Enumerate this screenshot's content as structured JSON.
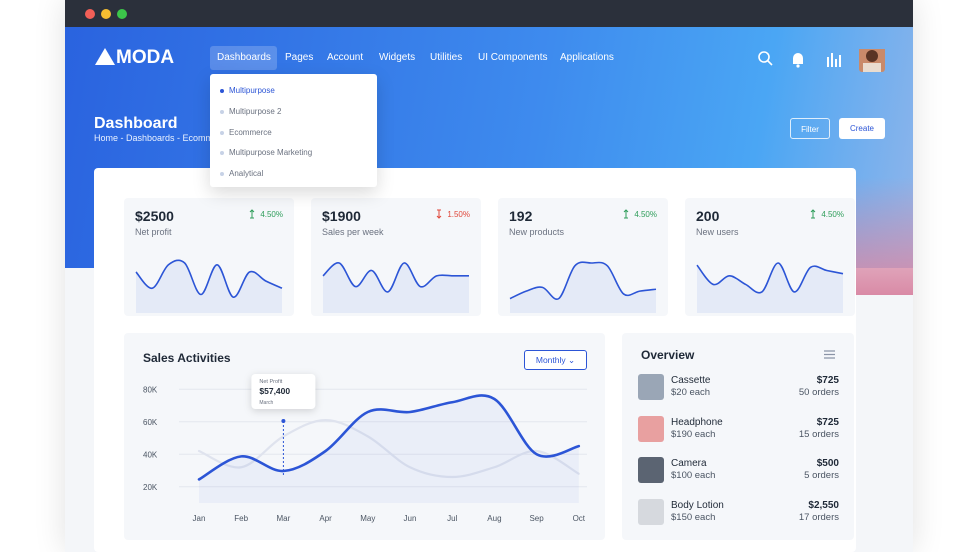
{
  "nav": {
    "brand": "MODA",
    "menu": [
      "Dashboards",
      "Pages",
      "Account",
      "Widgets",
      "Utilities",
      "UI Components",
      "Applications"
    ]
  },
  "dropdown": [
    "Multipurpose",
    "Multipurpose 2",
    "Ecommerce",
    "Multipurpose Marketing",
    "Analytical"
  ],
  "header": {
    "title": "Dashboard",
    "breadcrumb": "Home - Dashboards - Ecommerce",
    "buttons": [
      "Filter",
      "Create"
    ]
  },
  "stats": [
    {
      "value": "$2500",
      "label": "Net profit",
      "change": "4.50%",
      "trend": "up",
      "spark": [
        40,
        22,
        48,
        50,
        15,
        48,
        12,
        40,
        30,
        22
      ]
    },
    {
      "value": "$1900",
      "label": "Sales per week",
      "change": "1.50%",
      "trend": "down",
      "spark": [
        30,
        42,
        20,
        35,
        15,
        42,
        20,
        30,
        30,
        30
      ]
    },
    {
      "value": "192",
      "label": "New products",
      "change": "4.50%",
      "trend": "up",
      "spark": [
        10,
        18,
        22,
        10,
        45,
        48,
        45,
        15,
        18,
        20
      ]
    },
    {
      "value": "200",
      "label": "New users",
      "change": "4.50%",
      "trend": "up",
      "spark": [
        40,
        22,
        30,
        22,
        15,
        42,
        15,
        38,
        35,
        32
      ]
    }
  ],
  "sales": {
    "title": "Sales Activities",
    "button": "Monthly",
    "tooltip": {
      "label": "Net Profit",
      "value": "$57,400",
      "period": "March"
    },
    "chart_data": {
      "type": "line",
      "categories": [
        "Jan",
        "Feb",
        "Mar",
        "Apr",
        "May",
        "Jun",
        "Jul",
        "Aug",
        "Sep",
        "Oct"
      ],
      "ylim": [
        10000,
        90000
      ],
      "yticks": [
        {
          "value": 20000,
          "label": "20K"
        },
        {
          "value": 40000,
          "label": "40K"
        },
        {
          "value": 60000,
          "label": "60K"
        },
        {
          "value": 80000,
          "label": "80K"
        }
      ],
      "grid": true,
      "series": [
        {
          "color": "#dfe3ee",
          "values": [
            42000,
            32000,
            51000,
            61000,
            51000,
            32000,
            26000,
            32000,
            42000,
            28000
          ]
        },
        {
          "color": "#2c55d6",
          "values": [
            24500,
            38700,
            29700,
            42000,
            66000,
            66000,
            72000,
            74000,
            40000,
            45000
          ]
        }
      ]
    }
  },
  "overview": {
    "title": "Overview",
    "items": [
      {
        "name": "Cassette",
        "price": "$20 each",
        "total": "$725",
        "orders": "50 orders"
      },
      {
        "name": "Headphone",
        "price": "$190 each",
        "total": "$725",
        "orders": "15 orders"
      },
      {
        "name": "Camera",
        "price": "$100 each",
        "total": "$500",
        "orders": "5 orders"
      },
      {
        "name": "Body Lotion",
        "price": "$150 each",
        "total": "$2,550",
        "orders": "17 orders"
      }
    ]
  }
}
